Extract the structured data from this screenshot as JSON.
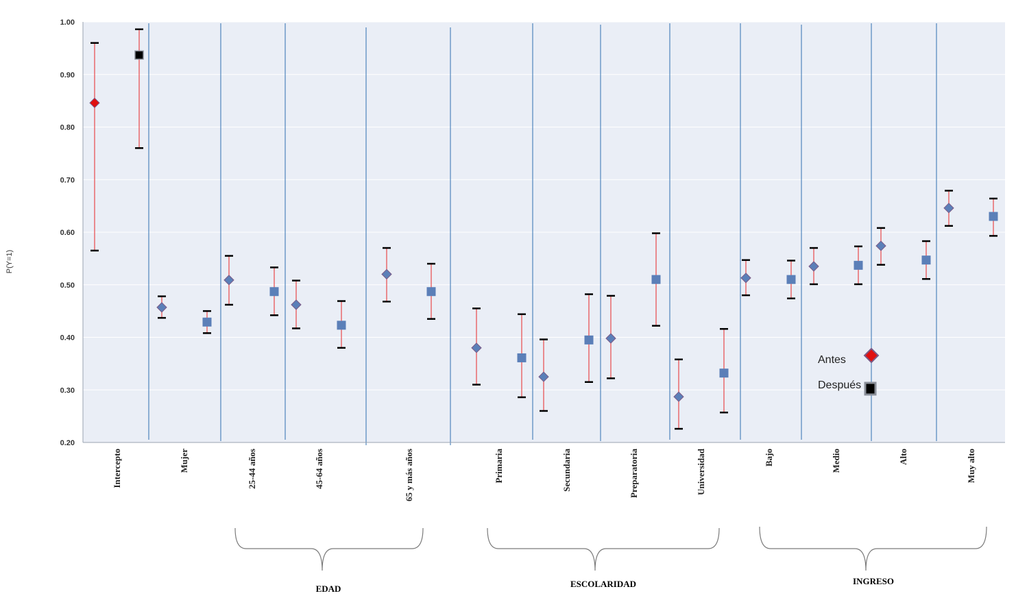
{
  "chart_data": {
    "type": "scatter",
    "ylabel": "P(Y=1)",
    "ylim": [
      0.2,
      1.0
    ],
    "yticks": [
      "0.20",
      "0.30",
      "0.40",
      "0.50",
      "0.60",
      "0.70",
      "0.80",
      "0.90",
      "1.00"
    ],
    "categories": [
      "Intercepto",
      "Mujer",
      "25-44 años",
      "45-64 años",
      "65 y más años",
      "Primaria",
      "Secundaria",
      "Preparatoria",
      "Universidad",
      "Bajo",
      "Medio",
      "Alto",
      "Muy alto"
    ],
    "series": [
      {
        "name": "Antes",
        "values": [
          0.846,
          0.457,
          0.509,
          0.462,
          0.52,
          0.38,
          0.325,
          0.398,
          0.287,
          0.513,
          0.535,
          0.574,
          0.646
        ],
        "lower": [
          0.565,
          0.437,
          0.462,
          0.417,
          0.468,
          0.31,
          0.26,
          0.322,
          0.226,
          0.48,
          0.501,
          0.538,
          0.612
        ],
        "upper": [
          0.96,
          0.478,
          0.555,
          0.508,
          0.57,
          0.455,
          0.396,
          0.479,
          0.358,
          0.547,
          0.57,
          0.608,
          0.679
        ]
      },
      {
        "name": "Después",
        "values": [
          0.937,
          0.429,
          0.487,
          0.423,
          0.487,
          0.361,
          0.395,
          0.51,
          0.332,
          0.51,
          0.537,
          0.547,
          0.63
        ],
        "lower": [
          0.76,
          0.408,
          0.442,
          0.38,
          0.435,
          0.286,
          0.315,
          0.422,
          0.257,
          0.474,
          0.501,
          0.511,
          0.593
        ],
        "upper": [
          0.986,
          0.45,
          0.533,
          0.469,
          0.54,
          0.444,
          0.482,
          0.598,
          0.416,
          0.546,
          0.573,
          0.583,
          0.664
        ]
      }
    ],
    "groups": [
      {
        "label": "EDAD",
        "categories": [
          "25-44 años",
          "45-64 años",
          "65 y más años"
        ]
      },
      {
        "label": "ESCOLARIDAD",
        "categories": [
          "Primaria",
          "Secundaria",
          "Preparatoria",
          "Universidad"
        ]
      },
      {
        "label": "INGRESO",
        "categories": [
          "Bajo",
          "Medio",
          "Alto",
          "Muy alto"
        ]
      }
    ],
    "legend": {
      "position": "lower-right",
      "entries": [
        "Antes",
        "Después"
      ]
    },
    "grid": true
  },
  "colors": {
    "plot_background": "#eaeef6",
    "gridline": "#ffffff",
    "separator": "#2f6fb0",
    "errorbar": "#e8474a",
    "errorcap": "#000000",
    "marker_fill": "#5b7fb8",
    "marker_stroke": "#7b5a86",
    "intercept_antes": "#e01010",
    "intercept_despues": "#000000"
  }
}
